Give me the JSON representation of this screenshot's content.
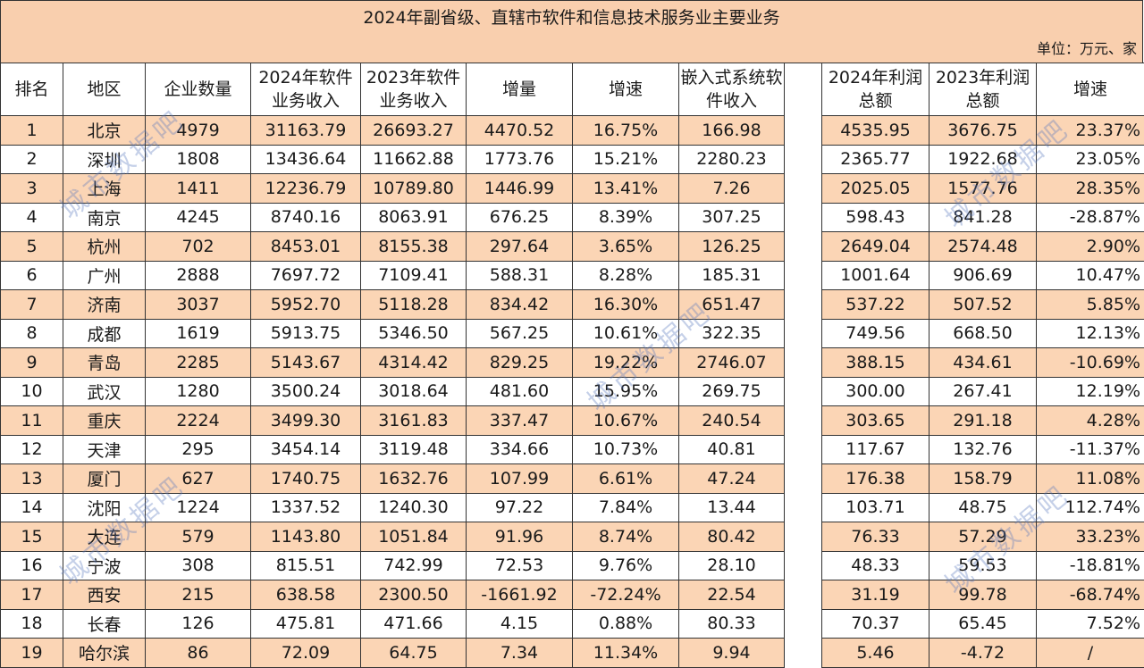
{
  "title": "2024年副省级、直辖市软件和信息技术服务业主要业务",
  "unit": "单位：万元、家",
  "watermark": "城市数据吧",
  "colors": {
    "header_fill": "#f9cfae",
    "odd_row_fill": "#fbd5b5",
    "even_row_fill": "#ffffff",
    "border": "#333333"
  },
  "columns": {
    "rank": "排名",
    "region": "地区",
    "companies": "企业数量",
    "rev2024": "2024年软件业务收入",
    "rev2023": "2023年软件业务收入",
    "increase": "增量",
    "growth": "增速",
    "embedded": "嵌入式系统软件收入",
    "profit2024": "2024年利润总额",
    "profit2023": "2023年利润总额",
    "profit_growth": "增速"
  },
  "rows": [
    {
      "rank": "1",
      "region": "北京",
      "companies": "4979",
      "rev2024": "31163.79",
      "rev2023": "26693.27",
      "increase": "4470.52",
      "growth": "16.75%",
      "embedded": "166.98",
      "profit2024": "4535.95",
      "profit2023": "3676.75",
      "profit_growth": "23.37%"
    },
    {
      "rank": "2",
      "region": "深圳",
      "companies": "1808",
      "rev2024": "13436.64",
      "rev2023": "11662.88",
      "increase": "1773.76",
      "growth": "15.21%",
      "embedded": "2280.23",
      "profit2024": "2365.77",
      "profit2023": "1922.68",
      "profit_growth": "23.05%"
    },
    {
      "rank": "3",
      "region": "上海",
      "companies": "1411",
      "rev2024": "12236.79",
      "rev2023": "10789.80",
      "increase": "1446.99",
      "growth": "13.41%",
      "embedded": "7.26",
      "profit2024": "2025.05",
      "profit2023": "1577.76",
      "profit_growth": "28.35%"
    },
    {
      "rank": "4",
      "region": "南京",
      "companies": "4245",
      "rev2024": "8740.16",
      "rev2023": "8063.91",
      "increase": "676.25",
      "growth": "8.39%",
      "embedded": "307.25",
      "profit2024": "598.43",
      "profit2023": "841.28",
      "profit_growth": "-28.87%"
    },
    {
      "rank": "5",
      "region": "杭州",
      "companies": "702",
      "rev2024": "8453.01",
      "rev2023": "8155.38",
      "increase": "297.64",
      "growth": "3.65%",
      "embedded": "126.25",
      "profit2024": "2649.04",
      "profit2023": "2574.48",
      "profit_growth": "2.90%"
    },
    {
      "rank": "6",
      "region": "广州",
      "companies": "2888",
      "rev2024": "7697.72",
      "rev2023": "7109.41",
      "increase": "588.31",
      "growth": "8.28%",
      "embedded": "185.31",
      "profit2024": "1001.64",
      "profit2023": "906.69",
      "profit_growth": "10.47%"
    },
    {
      "rank": "7",
      "region": "济南",
      "companies": "3037",
      "rev2024": "5952.70",
      "rev2023": "5118.28",
      "increase": "834.42",
      "growth": "16.30%",
      "embedded": "651.47",
      "profit2024": "537.22",
      "profit2023": "507.52",
      "profit_growth": "5.85%"
    },
    {
      "rank": "8",
      "region": "成都",
      "companies": "1619",
      "rev2024": "5913.75",
      "rev2023": "5346.50",
      "increase": "567.25",
      "growth": "10.61%",
      "embedded": "322.35",
      "profit2024": "749.56",
      "profit2023": "668.50",
      "profit_growth": "12.13%"
    },
    {
      "rank": "9",
      "region": "青岛",
      "companies": "2285",
      "rev2024": "5143.67",
      "rev2023": "4314.42",
      "increase": "829.25",
      "growth": "19.22%",
      "embedded": "2746.07",
      "profit2024": "388.15",
      "profit2023": "434.61",
      "profit_growth": "-10.69%"
    },
    {
      "rank": "10",
      "region": "武汉",
      "companies": "1280",
      "rev2024": "3500.24",
      "rev2023": "3018.64",
      "increase": "481.60",
      "growth": "15.95%",
      "embedded": "269.75",
      "profit2024": "300.00",
      "profit2023": "267.41",
      "profit_growth": "12.19%"
    },
    {
      "rank": "11",
      "region": "重庆",
      "companies": "2224",
      "rev2024": "3499.30",
      "rev2023": "3161.83",
      "increase": "337.47",
      "growth": "10.67%",
      "embedded": "240.54",
      "profit2024": "303.65",
      "profit2023": "291.18",
      "profit_growth": "4.28%"
    },
    {
      "rank": "12",
      "region": "天津",
      "companies": "295",
      "rev2024": "3454.14",
      "rev2023": "3119.48",
      "increase": "334.66",
      "growth": "10.73%",
      "embedded": "40.81",
      "profit2024": "117.67",
      "profit2023": "132.76",
      "profit_growth": "-11.37%"
    },
    {
      "rank": "13",
      "region": "厦门",
      "companies": "627",
      "rev2024": "1740.75",
      "rev2023": "1632.76",
      "increase": "107.99",
      "growth": "6.61%",
      "embedded": "47.24",
      "profit2024": "176.38",
      "profit2023": "158.79",
      "profit_growth": "11.08%"
    },
    {
      "rank": "14",
      "region": "沈阳",
      "companies": "1224",
      "rev2024": "1337.52",
      "rev2023": "1240.30",
      "increase": "97.22",
      "growth": "7.84%",
      "embedded": "13.44",
      "profit2024": "103.71",
      "profit2023": "48.75",
      "profit_growth": "112.74%"
    },
    {
      "rank": "15",
      "region": "大连",
      "companies": "579",
      "rev2024": "1143.80",
      "rev2023": "1051.84",
      "increase": "91.96",
      "growth": "8.74%",
      "embedded": "80.42",
      "profit2024": "76.33",
      "profit2023": "57.29",
      "profit_growth": "33.23%"
    },
    {
      "rank": "16",
      "region": "宁波",
      "companies": "308",
      "rev2024": "815.51",
      "rev2023": "742.99",
      "increase": "72.53",
      "growth": "9.76%",
      "embedded": "28.10",
      "profit2024": "48.33",
      "profit2023": "59.53",
      "profit_growth": "-18.81%"
    },
    {
      "rank": "17",
      "region": "西安",
      "companies": "215",
      "rev2024": "638.58",
      "rev2023": "2300.50",
      "increase": "-1661.92",
      "growth": "-72.24%",
      "embedded": "22.54",
      "profit2024": "31.19",
      "profit2023": "99.78",
      "profit_growth": "-68.74%"
    },
    {
      "rank": "18",
      "region": "长春",
      "companies": "126",
      "rev2024": "475.81",
      "rev2023": "471.66",
      "increase": "4.15",
      "growth": "0.88%",
      "embedded": "80.33",
      "profit2024": "70.37",
      "profit2023": "65.45",
      "profit_growth": "7.52%"
    },
    {
      "rank": "19",
      "region": "哈尔滨",
      "companies": "86",
      "rev2024": "72.09",
      "rev2023": "64.75",
      "increase": "7.34",
      "growth": "11.34%",
      "embedded": "9.94",
      "profit2024": "5.46",
      "profit2023": "-4.72",
      "profit_growth": "/"
    }
  ]
}
